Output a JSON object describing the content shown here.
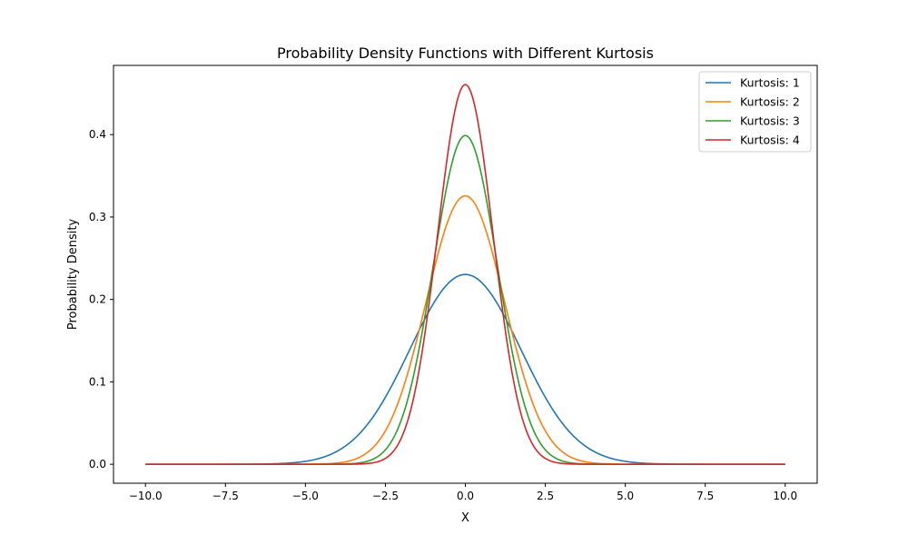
{
  "chart_data": {
    "type": "line",
    "title": "Probability Density Functions with Different Kurtosis",
    "xlabel": "X",
    "ylabel": "Probability Density",
    "xlim": [
      -11,
      11
    ],
    "ylim": [
      -0.023,
      0.484
    ],
    "x_ticks": [
      -10,
      -7.5,
      -5,
      -2.5,
      0,
      2.5,
      5,
      7.5,
      10
    ],
    "x_tick_labels": [
      "−10.0",
      "−7.5",
      "−5.0",
      "−2.5",
      "0.0",
      "2.5",
      "5.0",
      "7.5",
      "10.0"
    ],
    "y_ticks": [
      0,
      0.1,
      0.2,
      0.3,
      0.4
    ],
    "y_tick_labels": [
      "0.0",
      "0.1",
      "0.2",
      "0.3",
      "0.4"
    ],
    "x_range": [
      -10,
      10
    ],
    "grid": false,
    "legend_position": "top-right",
    "series": [
      {
        "name": "Kurtosis: 1",
        "color": "#1f77b4",
        "peak": 0.2303,
        "sigma": 1.7321
      },
      {
        "name": "Kurtosis: 2",
        "color": "#ff7f0e",
        "peak": 0.3257,
        "sigma": 1.2247
      },
      {
        "name": "Kurtosis: 3",
        "color": "#2ca02c",
        "peak": 0.3989,
        "sigma": 1.0
      },
      {
        "name": "Kurtosis: 4",
        "color": "#d62728",
        "peak": 0.4607,
        "sigma": 0.866
      }
    ]
  }
}
